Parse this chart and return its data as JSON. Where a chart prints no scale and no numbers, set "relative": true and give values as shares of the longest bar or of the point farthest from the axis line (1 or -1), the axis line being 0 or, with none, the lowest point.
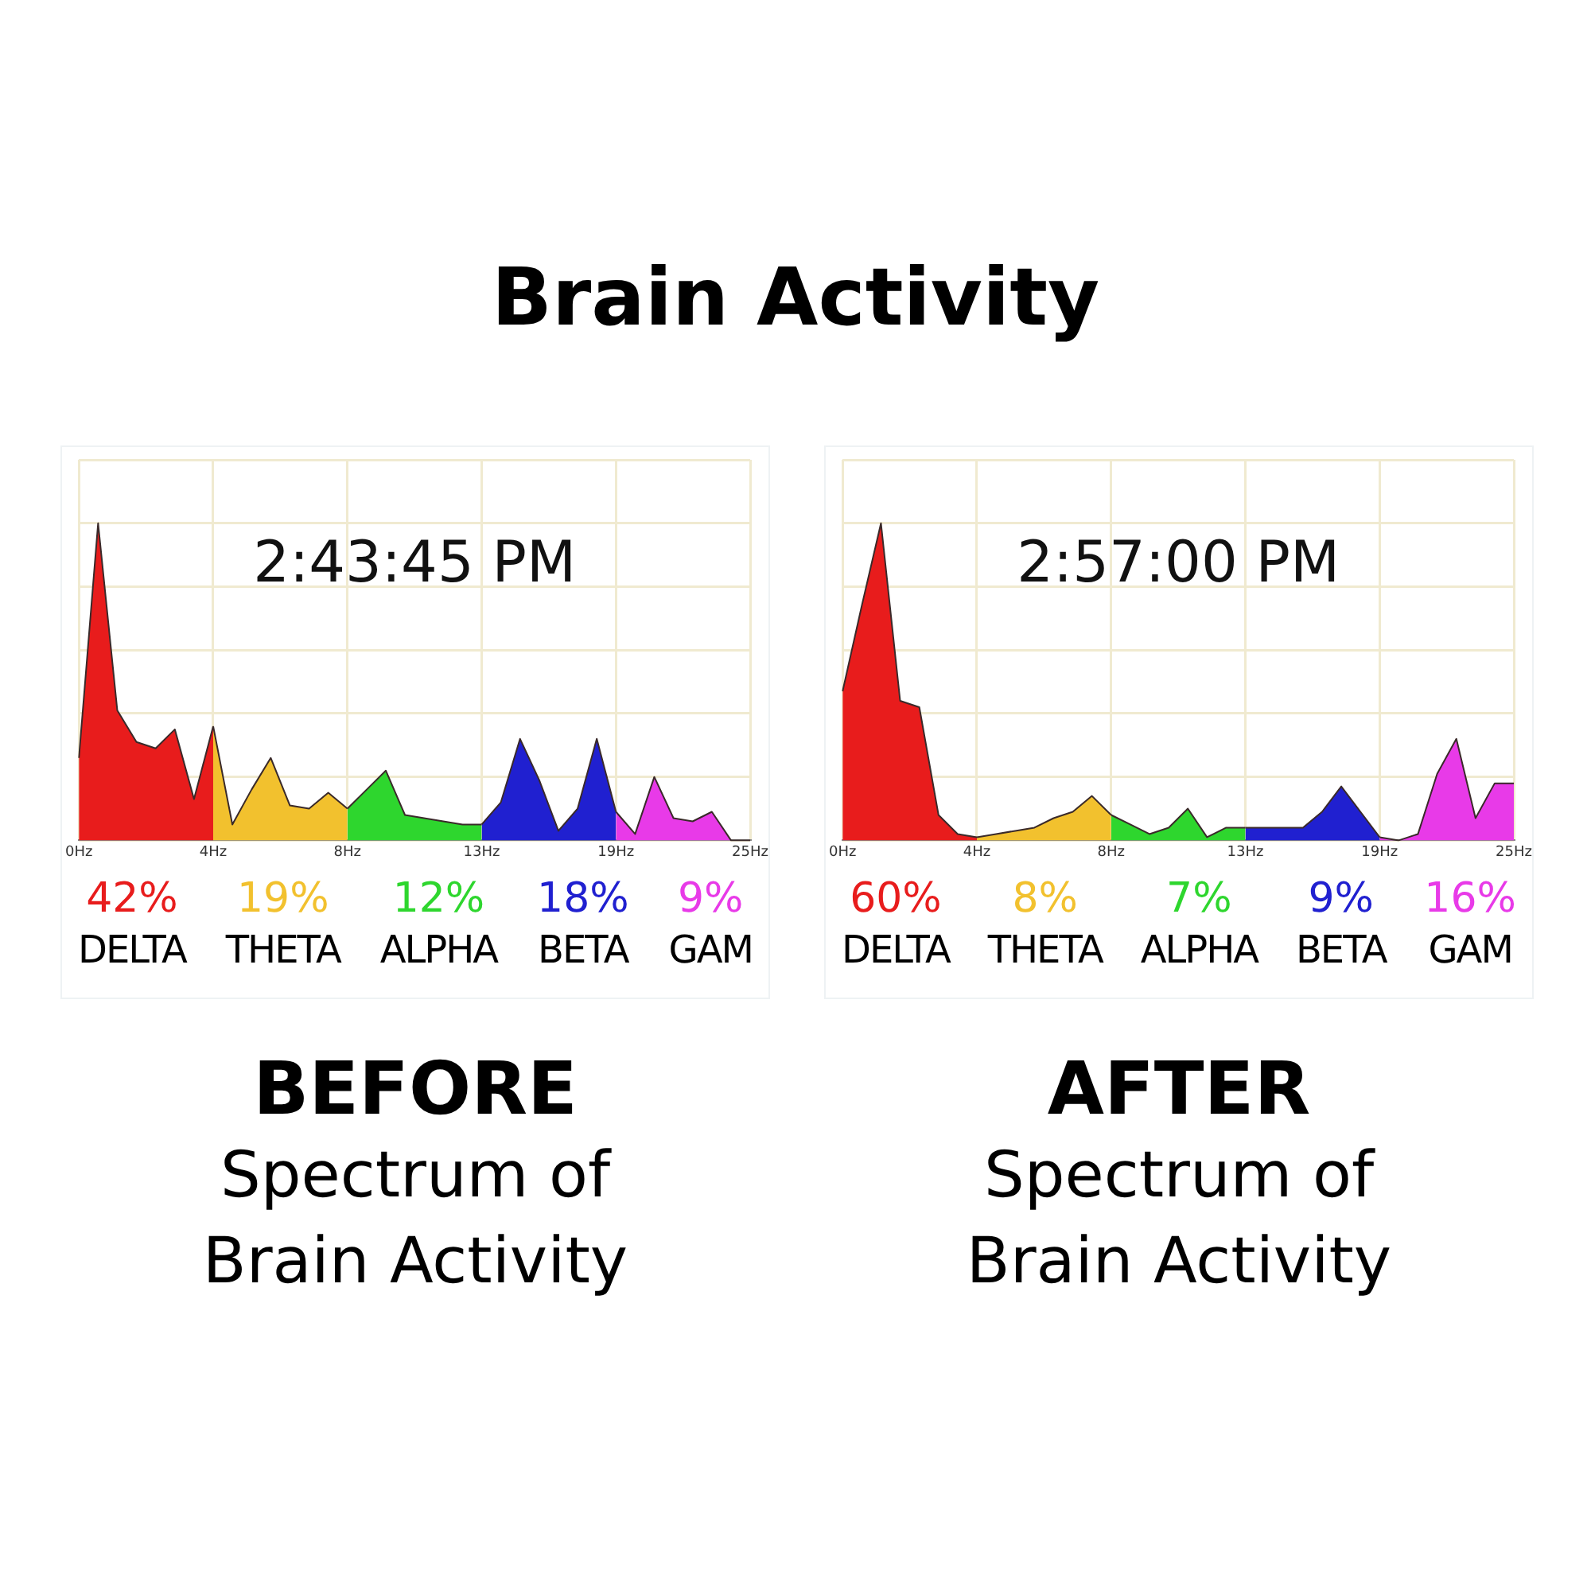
{
  "chart_data": [
    {
      "type": "area",
      "title": "Brain Activity",
      "relative": true,
      "grid": true,
      "legend": "bottom",
      "categories": [
        "0Hz",
        null,
        null,
        null,
        null,
        null,
        null,
        "4Hz",
        null,
        null,
        null,
        null,
        null,
        null,
        "8Hz",
        null,
        null,
        null,
        null,
        null,
        null,
        "13Hz",
        null,
        null,
        null,
        null,
        null,
        null,
        "19Hz",
        null,
        null,
        null,
        null,
        null,
        null,
        "25Hz"
      ],
      "annotations": [
        "2:43:45 PM",
        "42%",
        "19%",
        "12%",
        "18%",
        "9%",
        "BEFORE",
        "Spectrum of\nBrain Activity"
      ],
      "series": [
        {
          "name": "DELTA",
          "color": "#e81c1c",
          "values": [
            0.26,
            1,
            0.41,
            0.31,
            0.29,
            0.35,
            0.13,
            0.36,
            null,
            null,
            null,
            null,
            null,
            null,
            null,
            null,
            null,
            null,
            null,
            null,
            null,
            null,
            null,
            null,
            null,
            null,
            null,
            null,
            null,
            null,
            null,
            null,
            null,
            null,
            null,
            null
          ]
        },
        {
          "name": "THETA",
          "color": "#f2c12e",
          "values": [
            null,
            null,
            null,
            null,
            null,
            null,
            null,
            0.36,
            0.05,
            0.16,
            0.26,
            0.11,
            0.1,
            0.15,
            0.1,
            null,
            null,
            null,
            null,
            null,
            null,
            null,
            null,
            null,
            null,
            null,
            null,
            null,
            null,
            null,
            null,
            null,
            null,
            null,
            null,
            null
          ]
        },
        {
          "name": "ALPHA",
          "color": "#2ed62e",
          "values": [
            null,
            null,
            null,
            null,
            null,
            null,
            null,
            null,
            null,
            null,
            null,
            null,
            null,
            null,
            0.1,
            0.16,
            0.22,
            0.08,
            0.07,
            0.06,
            0.05,
            0.05,
            null,
            null,
            null,
            null,
            null,
            null,
            null,
            null,
            null,
            null,
            null,
            null,
            null,
            null
          ]
        },
        {
          "name": "BETA",
          "color": "#2020d0",
          "values": [
            null,
            null,
            null,
            null,
            null,
            null,
            null,
            null,
            null,
            null,
            null,
            null,
            null,
            null,
            null,
            null,
            null,
            null,
            null,
            null,
            null,
            0.05,
            0.12,
            0.32,
            0.19,
            0.03,
            0.1,
            0.32,
            0.09,
            null,
            null,
            null,
            null,
            null,
            null,
            null
          ]
        },
        {
          "name": "GAM",
          "color": "#e83ae8",
          "values": [
            null,
            null,
            null,
            null,
            null,
            null,
            null,
            null,
            null,
            null,
            null,
            null,
            null,
            null,
            null,
            null,
            null,
            null,
            null,
            null,
            null,
            null,
            null,
            null,
            null,
            null,
            null,
            null,
            0.09,
            0.02,
            0.2,
            0.07,
            0.06,
            0.09,
            0,
            0
          ]
        }
      ]
    },
    {
      "type": "area",
      "relative": true,
      "grid": true,
      "legend": "bottom",
      "categories": [
        "0Hz",
        null,
        null,
        null,
        null,
        null,
        null,
        "4Hz",
        null,
        null,
        null,
        null,
        null,
        null,
        "8Hz",
        null,
        null,
        null,
        null,
        null,
        null,
        "13Hz",
        null,
        null,
        null,
        null,
        null,
        null,
        "19Hz",
        null,
        null,
        null,
        null,
        null,
        null,
        "25Hz"
      ],
      "annotations": [
        "2:57:00 PM",
        "60%",
        "8%",
        "7%",
        "9%",
        "16%",
        "AFTER",
        "Spectrum of\nBrain Activity"
      ],
      "series": [
        {
          "name": "DELTA",
          "color": "#e81c1c",
          "values": [
            0.47,
            0.74,
            1,
            0.44,
            0.42,
            0.08,
            0.02,
            0.01,
            null,
            null,
            null,
            null,
            null,
            null,
            null,
            null,
            null,
            null,
            null,
            null,
            null,
            null,
            null,
            null,
            null,
            null,
            null,
            null,
            null,
            null,
            null,
            null,
            null,
            null,
            null,
            null
          ]
        },
        {
          "name": "THETA",
          "color": "#f2c12e",
          "values": [
            null,
            null,
            null,
            null,
            null,
            null,
            null,
            0.01,
            0.02,
            0.03,
            0.04,
            0.07,
            0.09,
            0.14,
            0.08,
            null,
            null,
            null,
            null,
            null,
            null,
            null,
            null,
            null,
            null,
            null,
            null,
            null,
            null,
            null,
            null,
            null,
            null,
            null,
            null,
            null
          ]
        },
        {
          "name": "ALPHA",
          "color": "#2ed62e",
          "values": [
            null,
            null,
            null,
            null,
            null,
            null,
            null,
            null,
            null,
            null,
            null,
            null,
            null,
            null,
            0.08,
            0.05,
            0.02,
            0.04,
            0.1,
            0.01,
            0.04,
            0.04,
            null,
            null,
            null,
            null,
            null,
            null,
            null,
            null,
            null,
            null,
            null,
            null,
            null,
            null
          ]
        },
        {
          "name": "BETA",
          "color": "#2020d0",
          "values": [
            null,
            null,
            null,
            null,
            null,
            null,
            null,
            null,
            null,
            null,
            null,
            null,
            null,
            null,
            null,
            null,
            null,
            null,
            null,
            null,
            null,
            0.04,
            0.04,
            0.04,
            0.04,
            0.09,
            0.17,
            0.09,
            0.01,
            null,
            null,
            null,
            null,
            null,
            null,
            null
          ]
        },
        {
          "name": "GAM",
          "color": "#e83ae8",
          "values": [
            null,
            null,
            null,
            null,
            null,
            null,
            null,
            null,
            null,
            null,
            null,
            null,
            null,
            null,
            null,
            null,
            null,
            null,
            null,
            null,
            null,
            null,
            null,
            null,
            null,
            null,
            null,
            null,
            0.01,
            0,
            0.02,
            0.21,
            0.32,
            0.07,
            0.18,
            0.18
          ]
        }
      ]
    }
  ]
}
